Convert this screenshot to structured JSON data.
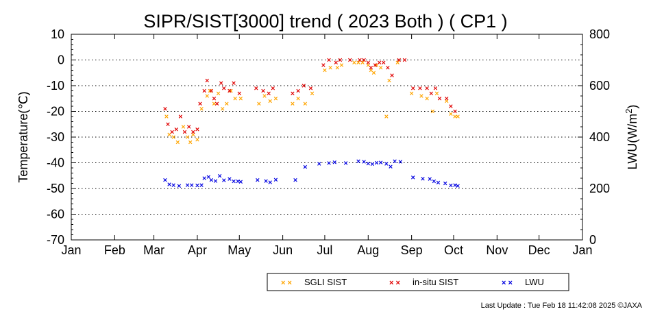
{
  "chart_data": {
    "type": "scatter",
    "title": "SIPR/SIST[3000] trend ( 2023 Both ) ( CP1 )",
    "xlabel": "",
    "ylabel": "Temperature(℃)",
    "y2label": "LWU(W/m²)",
    "x_tick_labels": [
      "Jan",
      "Feb",
      "Mar",
      "Apr",
      "May",
      "Jun",
      "Jul",
      "Aug",
      "Sep",
      "Oct",
      "Nov",
      "Dec",
      "Jan"
    ],
    "xlim": [
      "2023-01-01",
      "2024-01-01"
    ],
    "ylim": [
      -70,
      10
    ],
    "y_ticks": [
      10,
      0,
      -10,
      -20,
      -30,
      -40,
      -50,
      -60,
      -70
    ],
    "y2lim": [
      0,
      800
    ],
    "y2_ticks": [
      800,
      600,
      400,
      200,
      0
    ],
    "grid": "horizontal dotted",
    "legend_position": "bottom",
    "series": [
      {
        "name": "SGLI SIST",
        "color": "#ffa500",
        "axis": "left",
        "x": [
          "2023-03-10",
          "2023-03-12",
          "2023-03-15",
          "2023-03-18",
          "2023-03-22",
          "2023-03-25",
          "2023-03-27",
          "2023-03-29",
          "2023-04-01",
          "2023-04-04",
          "2023-04-08",
          "2023-04-10",
          "2023-04-13",
          "2023-04-16",
          "2023-04-19",
          "2023-04-22",
          "2023-04-25",
          "2023-04-28",
          "2023-05-02",
          "2023-05-15",
          "2023-05-19",
          "2023-05-23",
          "2023-05-27",
          "2023-06-08",
          "2023-06-12",
          "2023-06-17",
          "2023-06-22",
          "2023-07-01",
          "2023-07-05",
          "2023-07-10",
          "2023-07-13",
          "2023-07-22",
          "2023-07-25",
          "2023-07-28",
          "2023-08-01",
          "2023-08-03",
          "2023-08-05",
          "2023-08-07",
          "2023-08-10",
          "2023-08-14",
          "2023-08-16",
          "2023-08-22",
          "2023-09-01",
          "2023-09-08",
          "2023-09-12",
          "2023-09-16",
          "2023-09-19",
          "2023-09-26",
          "2023-09-29",
          "2023-10-02",
          "2023-10-04"
        ],
        "y": [
          -22,
          -29,
          -30,
          -32,
          -26,
          -30,
          -32,
          -29,
          -31,
          -19,
          -14,
          -12,
          -17,
          -13,
          -19,
          -17,
          -12,
          -15,
          -15,
          -17,
          -14,
          -16,
          -15,
          -17,
          -15,
          -17,
          -13,
          -4,
          -3,
          -3,
          -2,
          -1,
          -1,
          -1,
          -2,
          -4,
          -5,
          -2,
          -3,
          -22,
          -8,
          -1,
          -13,
          -14,
          -15,
          -20,
          -13,
          -16,
          -21,
          -22,
          -22
        ]
      },
      {
        "name": "in-situ SIST",
        "color": "#e00000",
        "axis": "left",
        "x": [
          "2023-03-09",
          "2023-03-11",
          "2023-03-14",
          "2023-03-17",
          "2023-03-20",
          "2023-03-23",
          "2023-03-26",
          "2023-03-29",
          "2023-04-01",
          "2023-04-03",
          "2023-04-06",
          "2023-04-08",
          "2023-04-11",
          "2023-04-13",
          "2023-04-15",
          "2023-04-18",
          "2023-04-20",
          "2023-04-24",
          "2023-04-27",
          "2023-05-01",
          "2023-05-13",
          "2023-05-18",
          "2023-05-22",
          "2023-05-25",
          "2023-06-08",
          "2023-06-12",
          "2023-06-16",
          "2023-06-21",
          "2023-06-30",
          "2023-07-04",
          "2023-07-09",
          "2023-07-12",
          "2023-07-19",
          "2023-07-26",
          "2023-07-29",
          "2023-08-01",
          "2023-08-03",
          "2023-08-06",
          "2023-08-09",
          "2023-08-12",
          "2023-08-15",
          "2023-08-18",
          "2023-08-23",
          "2023-08-27",
          "2023-09-02",
          "2023-09-07",
          "2023-09-12",
          "2023-09-15",
          "2023-09-18",
          "2023-09-21",
          "2023-09-26",
          "2023-09-29",
          "2023-10-02"
        ],
        "y": [
          -19,
          -25,
          -28,
          -27,
          -22,
          -28,
          -26,
          -28,
          -27,
          -17,
          -12,
          -8,
          -12,
          -15,
          -17,
          -9,
          -11,
          -12,
          -9,
          -13,
          -11,
          -12,
          -13,
          -11,
          -13,
          -12,
          -10,
          -11,
          -2,
          0,
          -1,
          0,
          0,
          0,
          0,
          -1,
          -3,
          -2,
          -1,
          -1,
          -3,
          -6,
          0,
          0,
          -11,
          -11,
          -11,
          -13,
          -11,
          -15,
          -15,
          -18,
          -20
        ]
      },
      {
        "name": "LWU",
        "color": "#0000e0",
        "axis": "right",
        "x": [
          "2023-03-09",
          "2023-03-12",
          "2023-03-15",
          "2023-03-19",
          "2023-03-25",
          "2023-03-28",
          "2023-04-01",
          "2023-04-04",
          "2023-04-06",
          "2023-04-09",
          "2023-04-11",
          "2023-04-14",
          "2023-04-17",
          "2023-04-20",
          "2023-04-24",
          "2023-04-27",
          "2023-04-30",
          "2023-05-02",
          "2023-05-14",
          "2023-05-20",
          "2023-05-23",
          "2023-05-27",
          "2023-06-10",
          "2023-06-17",
          "2023-06-27",
          "2023-07-04",
          "2023-07-08",
          "2023-07-16",
          "2023-07-25",
          "2023-07-29",
          "2023-08-01",
          "2023-08-04",
          "2023-08-07",
          "2023-08-10",
          "2023-08-14",
          "2023-08-17",
          "2023-08-20",
          "2023-08-24",
          "2023-09-02",
          "2023-09-09",
          "2023-09-14",
          "2023-09-17",
          "2023-09-20",
          "2023-09-25",
          "2023-09-29",
          "2023-10-02",
          "2023-10-04"
        ],
        "y": [
          233,
          216,
          213,
          210,
          213,
          213,
          212,
          213,
          240,
          245,
          233,
          229,
          249,
          232,
          237,
          228,
          228,
          226,
          233,
          229,
          224,
          234,
          233,
          284,
          296,
          299,
          302,
          299,
          306,
          304,
          297,
          295,
          300,
          301,
          296,
          285,
          306,
          304,
          243,
          238,
          237,
          228,
          223,
          220,
          212,
          213,
          210
        ]
      }
    ]
  },
  "legend": [
    {
      "label": "SGLI SIST",
      "color": "#ffa500"
    },
    {
      "label": "in-situ SIST",
      "color": "#e00000"
    },
    {
      "label": "LWU",
      "color": "#0000e0"
    }
  ],
  "footer": "Last Update : Tue Feb 18 11:42:08 2025  ©JAXA"
}
